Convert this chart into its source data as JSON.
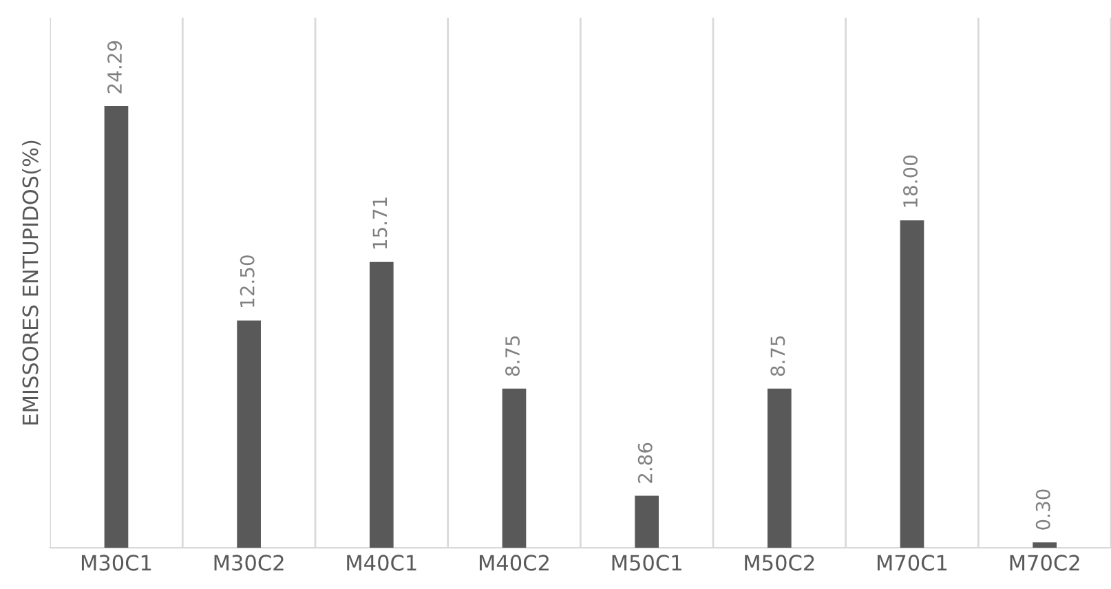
{
  "chart_data": {
    "type": "bar",
    "ylabel": "EMISSORES ENTUPIDOS(%)",
    "categories": [
      "M30C1",
      "M30C2",
      "M40C1",
      "M40C2",
      "M50C1",
      "M50C2",
      "M70C1",
      "M70C2"
    ],
    "values": [
      24.29,
      12.5,
      15.71,
      8.75,
      2.86,
      8.75,
      18.0,
      0.3
    ],
    "value_labels": [
      "24.29",
      "12.50",
      "15.71",
      "8.75",
      "2.86",
      "8.75",
      "18.00",
      "0.30"
    ],
    "color": "#595959",
    "grid": "x",
    "tick_labels": "x"
  }
}
